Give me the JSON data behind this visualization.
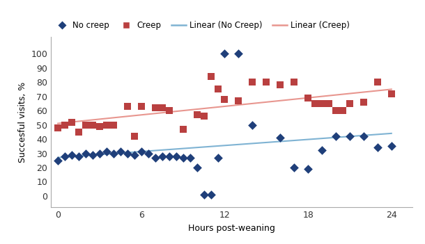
{
  "no_creep_x": [
    0,
    0.5,
    1,
    1.5,
    2,
    2.5,
    3,
    3.5,
    4,
    4.5,
    5,
    5.5,
    6,
    6.5,
    7,
    7.5,
    8,
    8.5,
    9,
    9.5,
    10,
    10.5,
    11,
    11.5,
    12,
    13,
    14,
    16,
    17,
    18,
    19,
    20,
    21,
    22,
    23,
    24
  ],
  "no_creep_y": [
    25,
    28,
    29,
    28,
    30,
    29,
    30,
    31,
    30,
    31,
    30,
    29,
    31,
    30,
    27,
    28,
    28,
    28,
    27,
    27,
    20,
    1,
    1,
    27,
    100,
    100,
    50,
    41,
    20,
    19,
    32,
    42,
    42,
    42,
    34,
    35
  ],
  "creep_x": [
    0,
    0.5,
    1,
    1.5,
    2,
    2.5,
    3,
    3.5,
    4,
    5,
    5.5,
    6,
    7,
    7.5,
    8,
    9,
    10,
    10.5,
    11,
    11.5,
    12,
    13,
    14,
    15,
    16,
    17,
    18,
    18.5,
    19,
    19.5,
    20,
    20.5,
    21,
    22,
    23,
    24
  ],
  "creep_y": [
    48,
    50,
    52,
    45,
    50,
    50,
    49,
    50,
    50,
    63,
    42,
    63,
    62,
    62,
    60,
    47,
    57,
    56,
    84,
    75,
    68,
    67,
    80,
    80,
    78,
    80,
    69,
    65,
    65,
    65,
    60,
    60,
    65,
    66,
    80,
    72
  ],
  "no_creep_line_x": [
    0,
    24
  ],
  "no_creep_line_y": [
    27.0,
    44.0
  ],
  "creep_line_x": [
    0,
    24
  ],
  "creep_line_y": [
    51.0,
    75.0
  ],
  "no_creep_color": "#1f3f7a",
  "creep_color": "#b94040",
  "no_creep_line_color": "#7fb3d3",
  "creep_line_color": "#e8968f",
  "xlabel": "Hours post-weaning",
  "ylabel": "Succesful visits, %",
  "xlim": [
    -0.5,
    25.5
  ],
  "ylim": [
    -8,
    112
  ],
  "xticks": [
    0,
    6,
    12,
    18,
    24
  ],
  "yticks": [
    0,
    10,
    20,
    30,
    40,
    50,
    60,
    70,
    80,
    90,
    100
  ],
  "legend_labels": [
    "No creep",
    "Creep",
    "Linear (No Creep)",
    "Linear (Creep)"
  ],
  "marker_size_diamond": 42,
  "marker_size_square": 55
}
